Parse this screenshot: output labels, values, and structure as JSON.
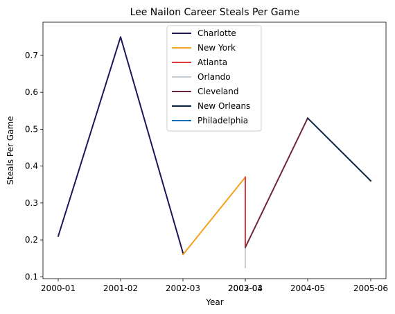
{
  "chart_data": {
    "type": "line",
    "title": "Lee Nailon Career Steals Per Game",
    "xlabel": "Year",
    "ylabel": "Steals Per Game",
    "x_tick_labels": [
      "2000-01",
      "2001-02",
      "2002-03",
      "2002-03",
      "2003-04",
      "2004-05",
      "2005-06"
    ],
    "y_ticks": [
      0.1,
      0.2,
      0.3,
      0.4,
      0.5,
      0.6,
      0.7
    ],
    "y_tick_labels": [
      "0.1",
      "0.2",
      "0.3",
      "0.4",
      "0.5",
      "0.6",
      "0.7"
    ],
    "ylim": [
      0.095,
      0.79
    ],
    "grid": false,
    "legend_position": "top-center",
    "series": [
      {
        "name": "Charlotte",
        "color": "#1f1659",
        "points": [
          {
            "x": "2000-01",
            "y": 0.21
          },
          {
            "x": "2001-02",
            "y": 0.75
          },
          {
            "x": "2002-03",
            "y": 0.165
          }
        ]
      },
      {
        "name": "New York",
        "color": "#f5a01f",
        "points": [
          {
            "x": "2002-03",
            "y": 0.16
          },
          {
            "x": "2002-03",
            "y": 0.37
          }
        ]
      },
      {
        "name": "Atlanta",
        "color": "#e03a3e",
        "points": [
          {
            "x": "2002-03",
            "y": 0.37
          },
          {
            "x": "2002-03",
            "y": 0.18
          }
        ]
      },
      {
        "name": "Orlando",
        "color": "#c4ced4",
        "points": [
          {
            "x": "2002-03",
            "y": 0.18
          },
          {
            "x": "2002-03",
            "y": 0.125
          }
        ]
      },
      {
        "name": "Cleveland",
        "color": "#6f263d",
        "points": [
          {
            "x": "2003-04",
            "y": 0.18
          },
          {
            "x": "2004-05",
            "y": 0.53
          }
        ]
      },
      {
        "name": "New Orleans",
        "color": "#0c2340",
        "points": [
          {
            "x": "2004-05",
            "y": 0.53
          },
          {
            "x": "2005-06",
            "y": 0.36
          }
        ]
      },
      {
        "name": "Philadelphia",
        "color": "#006bb6",
        "points": []
      }
    ]
  }
}
